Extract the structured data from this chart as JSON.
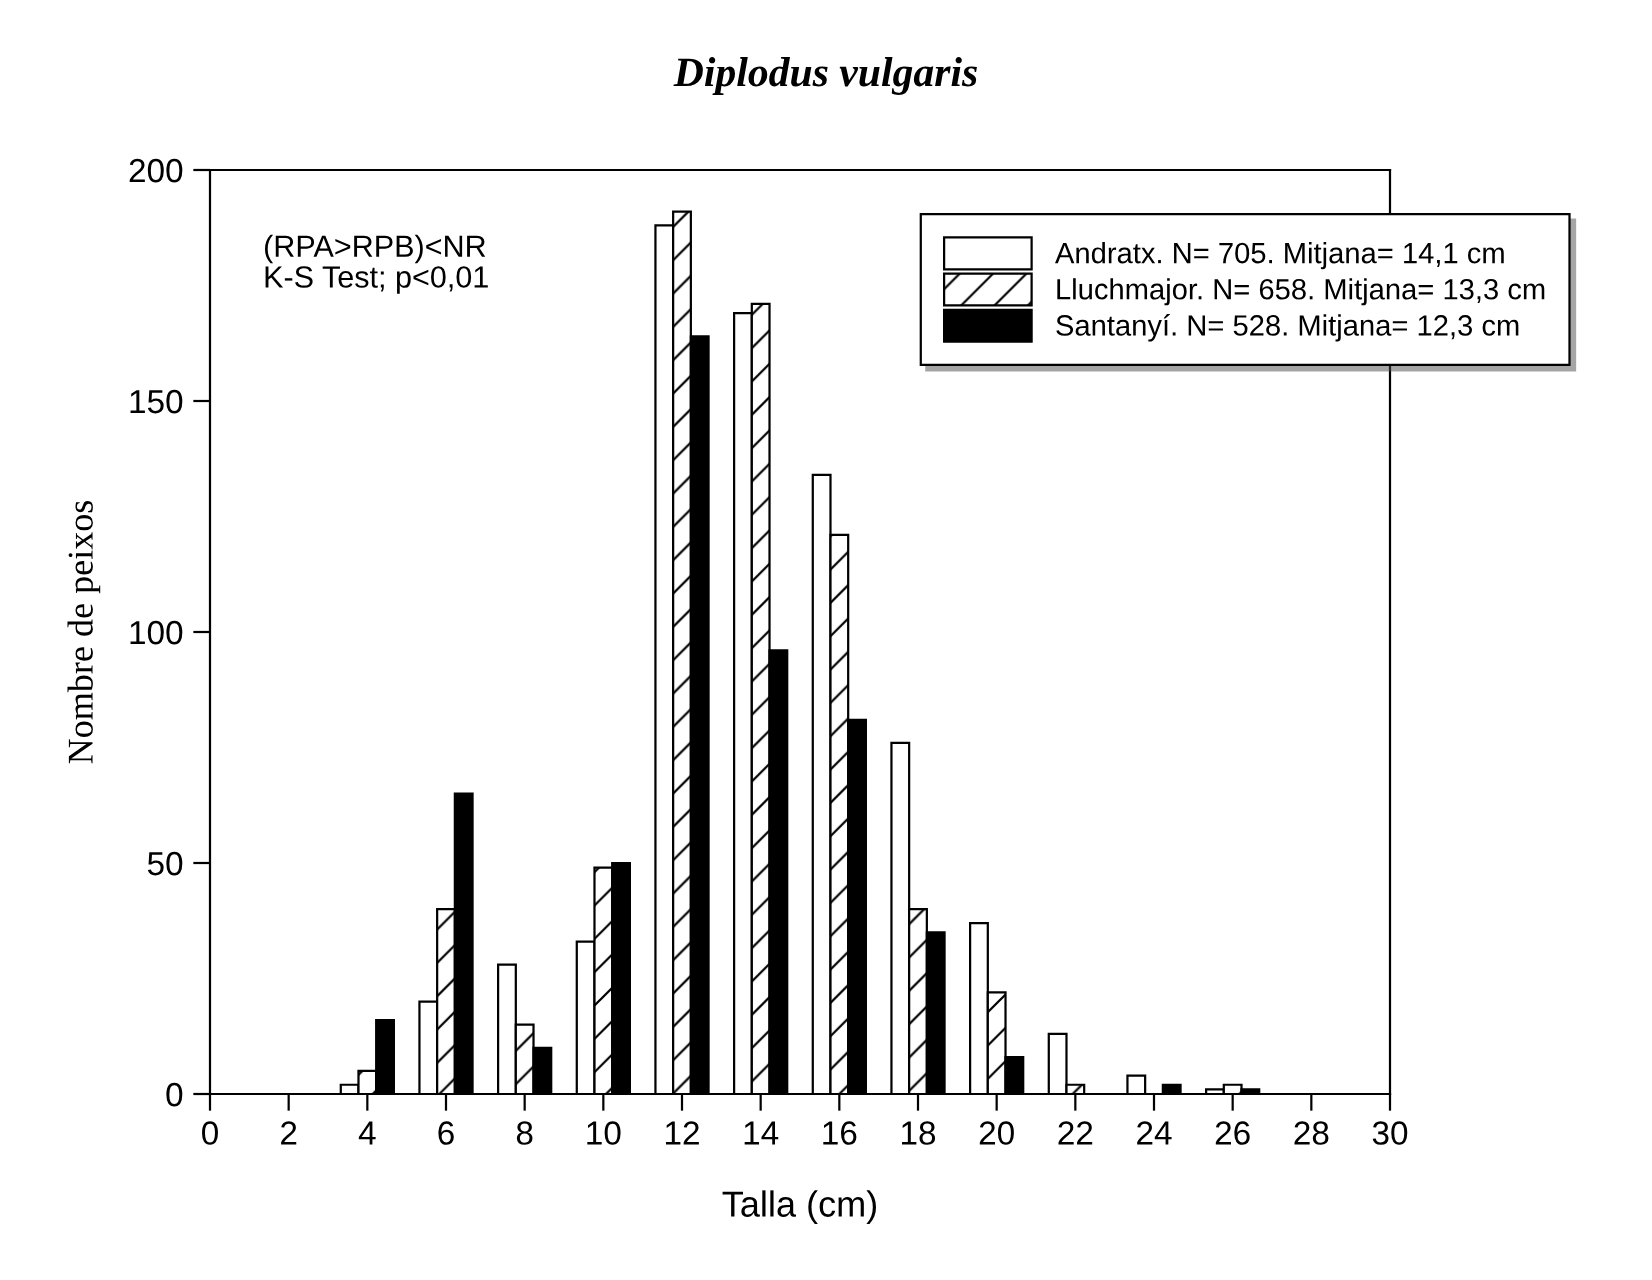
{
  "chart_data": {
    "type": "bar",
    "title": "Diplodus vulgaris",
    "xlabel": "Talla (cm)",
    "ylabel": "Nombre de peixos",
    "x": [
      4,
      6,
      8,
      10,
      12,
      14,
      16,
      18,
      20,
      22,
      24,
      26
    ],
    "series": [
      {
        "name": "Andratx. N= 705. Mitjana= 14,1 cm",
        "color": "#ffffff",
        "values": [
          2,
          20,
          28,
          33,
          188,
          169,
          134,
          76,
          37,
          13,
          4,
          1
        ]
      },
      {
        "name": "Lluchmajor. N= 658. Mitjana= 13,3 cm",
        "color": "#000000",
        "values": [
          5,
          40,
          15,
          49,
          191,
          171,
          121,
          40,
          22,
          2,
          0,
          2
        ]
      },
      {
        "name": "Santanyí. N= 528. Mitjana= 12,3 cm",
        "color": "#000000",
        "values": [
          16,
          65,
          10,
          50,
          164,
          96,
          81,
          35,
          8,
          0,
          2,
          1
        ]
      }
    ],
    "xlim": [
      0,
      30
    ],
    "xticks": [
      0,
      2,
      4,
      6,
      8,
      10,
      12,
      14,
      16,
      18,
      20,
      22,
      24,
      26,
      28,
      30
    ],
    "ylim": [
      0,
      200
    ],
    "yticks": [
      0,
      50,
      100,
      150,
      200
    ],
    "annotations": [
      "(RPA>RPB)<NR\nK-S Test; p<0,01"
    ],
    "grid": false,
    "legend": "top right"
  }
}
